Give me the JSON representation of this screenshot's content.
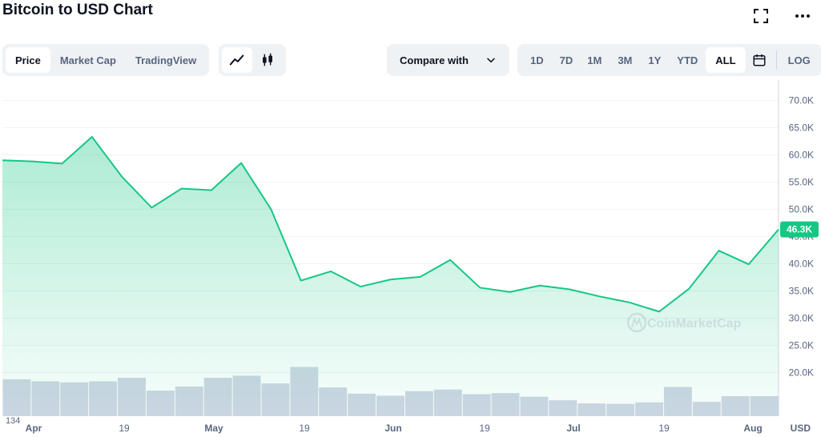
{
  "header": {
    "title": "Bitcoin to USD Chart",
    "fullscreen_icon": "fullscreen-icon",
    "more_icon": "more-horizontal-icon"
  },
  "tabs": [
    {
      "label": "Price",
      "active": true
    },
    {
      "label": "Market Cap",
      "active": false
    },
    {
      "label": "TradingView",
      "active": false
    }
  ],
  "chart_types": [
    {
      "icon": "line-chart-icon",
      "active": true
    },
    {
      "icon": "candlestick-icon",
      "active": false
    }
  ],
  "compare": {
    "label": "Compare with",
    "icon": "chevron-down-icon"
  },
  "ranges": [
    {
      "label": "1D",
      "active": false
    },
    {
      "label": "7D",
      "active": false
    },
    {
      "label": "1M",
      "active": false
    },
    {
      "label": "3M",
      "active": false
    },
    {
      "label": "1Y",
      "active": false
    },
    {
      "label": "YTD",
      "active": false
    },
    {
      "label": "ALL",
      "active": true
    }
  ],
  "calendar_icon": "calendar-icon",
  "log_label": "LOG",
  "colors": {
    "line": "#16c784",
    "area_top": "#16c784",
    "volume": "#cfd6e4",
    "grid": "#eff2f5",
    "axis_text": "#58667e",
    "badge_bg": "#16c784",
    "badge_text": "#ffffff"
  },
  "chart_data": {
    "type": "area",
    "currency": "USD",
    "watermark": "CoinMarketCap",
    "current_price_label": "46.3K",
    "ylim": [
      12000,
      73000
    ],
    "y_ticks": [
      "20.0K",
      "25.0K",
      "30.0K",
      "35.0K",
      "40.0K",
      "45.0K",
      "50.0K",
      "55.0K",
      "60.0K",
      "65.0K",
      "70.0K"
    ],
    "x_ticks": [
      "Apr",
      "19",
      "May",
      "19",
      "Jun",
      "19",
      "Jul",
      "19",
      "Aug"
    ],
    "volume_label": "134",
    "series": [
      {
        "values": [
          59000,
          58800,
          58400,
          63300,
          56000,
          50300,
          53800,
          53500,
          58500,
          50000,
          36900,
          38600,
          35800,
          37100,
          37600,
          40700,
          35600,
          34800,
          36000,
          35300,
          34000,
          32900,
          31200,
          35400,
          42400,
          39900,
          46300
        ]
      }
    ],
    "volume": [
      0.72,
      0.68,
      0.66,
      0.68,
      0.75,
      0.5,
      0.58,
      0.75,
      0.79,
      0.64,
      0.96,
      0.56,
      0.44,
      0.4,
      0.49,
      0.52,
      0.43,
      0.45,
      0.38,
      0.31,
      0.25,
      0.24,
      0.27,
      0.57,
      0.28,
      0.39,
      0.39
    ]
  }
}
